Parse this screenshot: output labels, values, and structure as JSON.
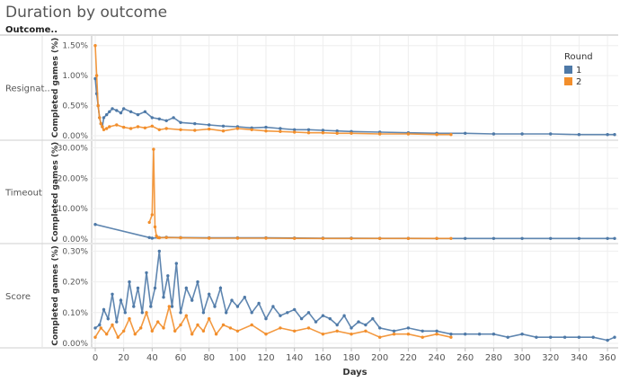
{
  "page": {
    "title": "Duration by outcome",
    "row_header": "Outcome.."
  },
  "legend": {
    "title": "Round",
    "items": [
      {
        "label": "1",
        "color": "#4e79a7"
      },
      {
        "label": "2",
        "color": "#f28e2b"
      }
    ]
  },
  "chart_data": {
    "type": "line",
    "xlabel": "Days",
    "xlim": [
      0,
      365
    ],
    "x_ticks": [
      0,
      20,
      40,
      60,
      80,
      100,
      120,
      140,
      160,
      180,
      200,
      220,
      240,
      260,
      280,
      300,
      320,
      340,
      360
    ],
    "panels": [
      {
        "name": "Resignat..",
        "ylabel": "Completed games (%)",
        "ylim": [
          0,
          1.6
        ],
        "y_ticks": [
          "0.00%",
          "0.50%",
          "1.00%",
          "1.50%"
        ],
        "y_tick_values": [
          0,
          0.5,
          1.0,
          1.5
        ],
        "series": [
          {
            "name": "1",
            "x": [
              0,
              1,
              2,
              3,
              4,
              5,
              6,
              8,
              10,
              12,
              15,
              18,
              20,
              25,
              30,
              35,
              40,
              45,
              50,
              55,
              60,
              70,
              80,
              90,
              100,
              110,
              120,
              130,
              140,
              150,
              160,
              170,
              180,
              200,
              220,
              240,
              260,
              280,
              300,
              320,
              340,
              360,
              365
            ],
            "y": [
              0.95,
              0.7,
              0.5,
              0.3,
              0.2,
              0.15,
              0.3,
              0.35,
              0.4,
              0.45,
              0.42,
              0.38,
              0.45,
              0.4,
              0.35,
              0.4,
              0.3,
              0.28,
              0.25,
              0.3,
              0.22,
              0.2,
              0.18,
              0.16,
              0.15,
              0.13,
              0.14,
              0.12,
              0.1,
              0.1,
              0.09,
              0.08,
              0.07,
              0.06,
              0.05,
              0.04,
              0.04,
              0.03,
              0.03,
              0.03,
              0.02,
              0.02,
              0.02
            ]
          },
          {
            "name": "2",
            "x": [
              0,
              1,
              2,
              3,
              4,
              5,
              6,
              8,
              10,
              15,
              20,
              25,
              30,
              35,
              40,
              45,
              50,
              60,
              70,
              80,
              90,
              100,
              110,
              120,
              130,
              140,
              150,
              160,
              170,
              180,
              200,
              220,
              240,
              250
            ],
            "y": [
              1.5,
              1.0,
              0.5,
              0.3,
              0.2,
              0.15,
              0.1,
              0.12,
              0.15,
              0.18,
              0.14,
              0.12,
              0.15,
              0.13,
              0.16,
              0.1,
              0.12,
              0.1,
              0.09,
              0.11,
              0.08,
              0.12,
              0.1,
              0.08,
              0.07,
              0.06,
              0.05,
              0.05,
              0.04,
              0.04,
              0.03,
              0.03,
              0.02,
              0.02
            ]
          }
        ]
      },
      {
        "name": "Timeout",
        "ylabel": "Completed games (%)",
        "ylim": [
          0,
          31
        ],
        "y_ticks": [
          "0.00%",
          "10.00%",
          "20.00%",
          "30.00%"
        ],
        "y_tick_values": [
          0,
          10,
          20,
          30
        ],
        "series": [
          {
            "name": "1",
            "x": [
              0,
              38,
              40,
              45,
              50,
              60,
              80,
              100,
              120,
              140,
              160,
              180,
              200,
              220,
              240,
              260,
              280,
              300,
              320,
              340,
              360,
              365
            ],
            "y": [
              4.8,
              0.5,
              0.3,
              0.5,
              0.6,
              0.5,
              0.4,
              0.4,
              0.4,
              0.35,
              0.3,
              0.3,
              0.25,
              0.25,
              0.2,
              0.2,
              0.2,
              0.2,
              0.2,
              0.2,
              0.2,
              0.2
            ]
          },
          {
            "name": "2",
            "x": [
              38,
              40,
              41,
              42,
              43,
              44,
              45,
              50,
              60,
              80,
              100,
              120,
              140,
              160,
              180,
              200,
              220,
              240,
              250
            ],
            "y": [
              5.5,
              8.0,
              29.5,
              4.0,
              1.0,
              0.5,
              0.4,
              0.5,
              0.4,
              0.3,
              0.3,
              0.3,
              0.25,
              0.2,
              0.2,
              0.2,
              0.2,
              0.2,
              0.2
            ]
          }
        ]
      },
      {
        "name": "Score",
        "ylabel": "Completed games (%)",
        "ylim": [
          0,
          0.31
        ],
        "y_ticks": [
          "0.00%",
          "0.10%",
          "0.20%",
          "0.30%"
        ],
        "y_tick_values": [
          0,
          0.1,
          0.2,
          0.3
        ],
        "series": [
          {
            "name": "1",
            "x": [
              0,
              3,
              6,
              9,
              12,
              15,
              18,
              21,
              24,
              27,
              30,
              33,
              36,
              39,
              42,
              45,
              48,
              51,
              54,
              57,
              60,
              64,
              68,
              72,
              76,
              80,
              84,
              88,
              92,
              96,
              100,
              105,
              110,
              115,
              120,
              125,
              130,
              135,
              140,
              145,
              150,
              155,
              160,
              165,
              170,
              175,
              180,
              185,
              190,
              195,
              200,
              210,
              220,
              230,
              240,
              250,
              260,
              270,
              280,
              290,
              300,
              310,
              320,
              330,
              340,
              350,
              360,
              365
            ],
            "y": [
              0.05,
              0.06,
              0.11,
              0.08,
              0.16,
              0.07,
              0.14,
              0.1,
              0.2,
              0.12,
              0.18,
              0.1,
              0.23,
              0.12,
              0.18,
              0.3,
              0.15,
              0.22,
              0.12,
              0.26,
              0.1,
              0.18,
              0.14,
              0.2,
              0.1,
              0.16,
              0.12,
              0.18,
              0.1,
              0.14,
              0.12,
              0.15,
              0.1,
              0.13,
              0.08,
              0.12,
              0.09,
              0.1,
              0.11,
              0.08,
              0.1,
              0.07,
              0.09,
              0.08,
              0.06,
              0.09,
              0.05,
              0.07,
              0.06,
              0.08,
              0.05,
              0.04,
              0.05,
              0.04,
              0.04,
              0.03,
              0.03,
              0.03,
              0.03,
              0.02,
              0.03,
              0.02,
              0.02,
              0.02,
              0.02,
              0.02,
              0.01,
              0.02
            ]
          },
          {
            "name": "2",
            "x": [
              0,
              4,
              8,
              12,
              16,
              20,
              24,
              28,
              32,
              36,
              40,
              44,
              48,
              52,
              56,
              60,
              64,
              68,
              72,
              76,
              80,
              85,
              90,
              95,
              100,
              110,
              120,
              130,
              140,
              150,
              160,
              170,
              180,
              190,
              200,
              210,
              220,
              230,
              240,
              250
            ],
            "y": [
              0.02,
              0.05,
              0.03,
              0.06,
              0.02,
              0.04,
              0.08,
              0.03,
              0.05,
              0.1,
              0.04,
              0.07,
              0.05,
              0.12,
              0.04,
              0.06,
              0.09,
              0.03,
              0.06,
              0.04,
              0.08,
              0.03,
              0.06,
              0.05,
              0.04,
              0.06,
              0.03,
              0.05,
              0.04,
              0.05,
              0.03,
              0.04,
              0.03,
              0.04,
              0.02,
              0.03,
              0.03,
              0.02,
              0.03,
              0.02
            ]
          }
        ]
      }
    ]
  }
}
